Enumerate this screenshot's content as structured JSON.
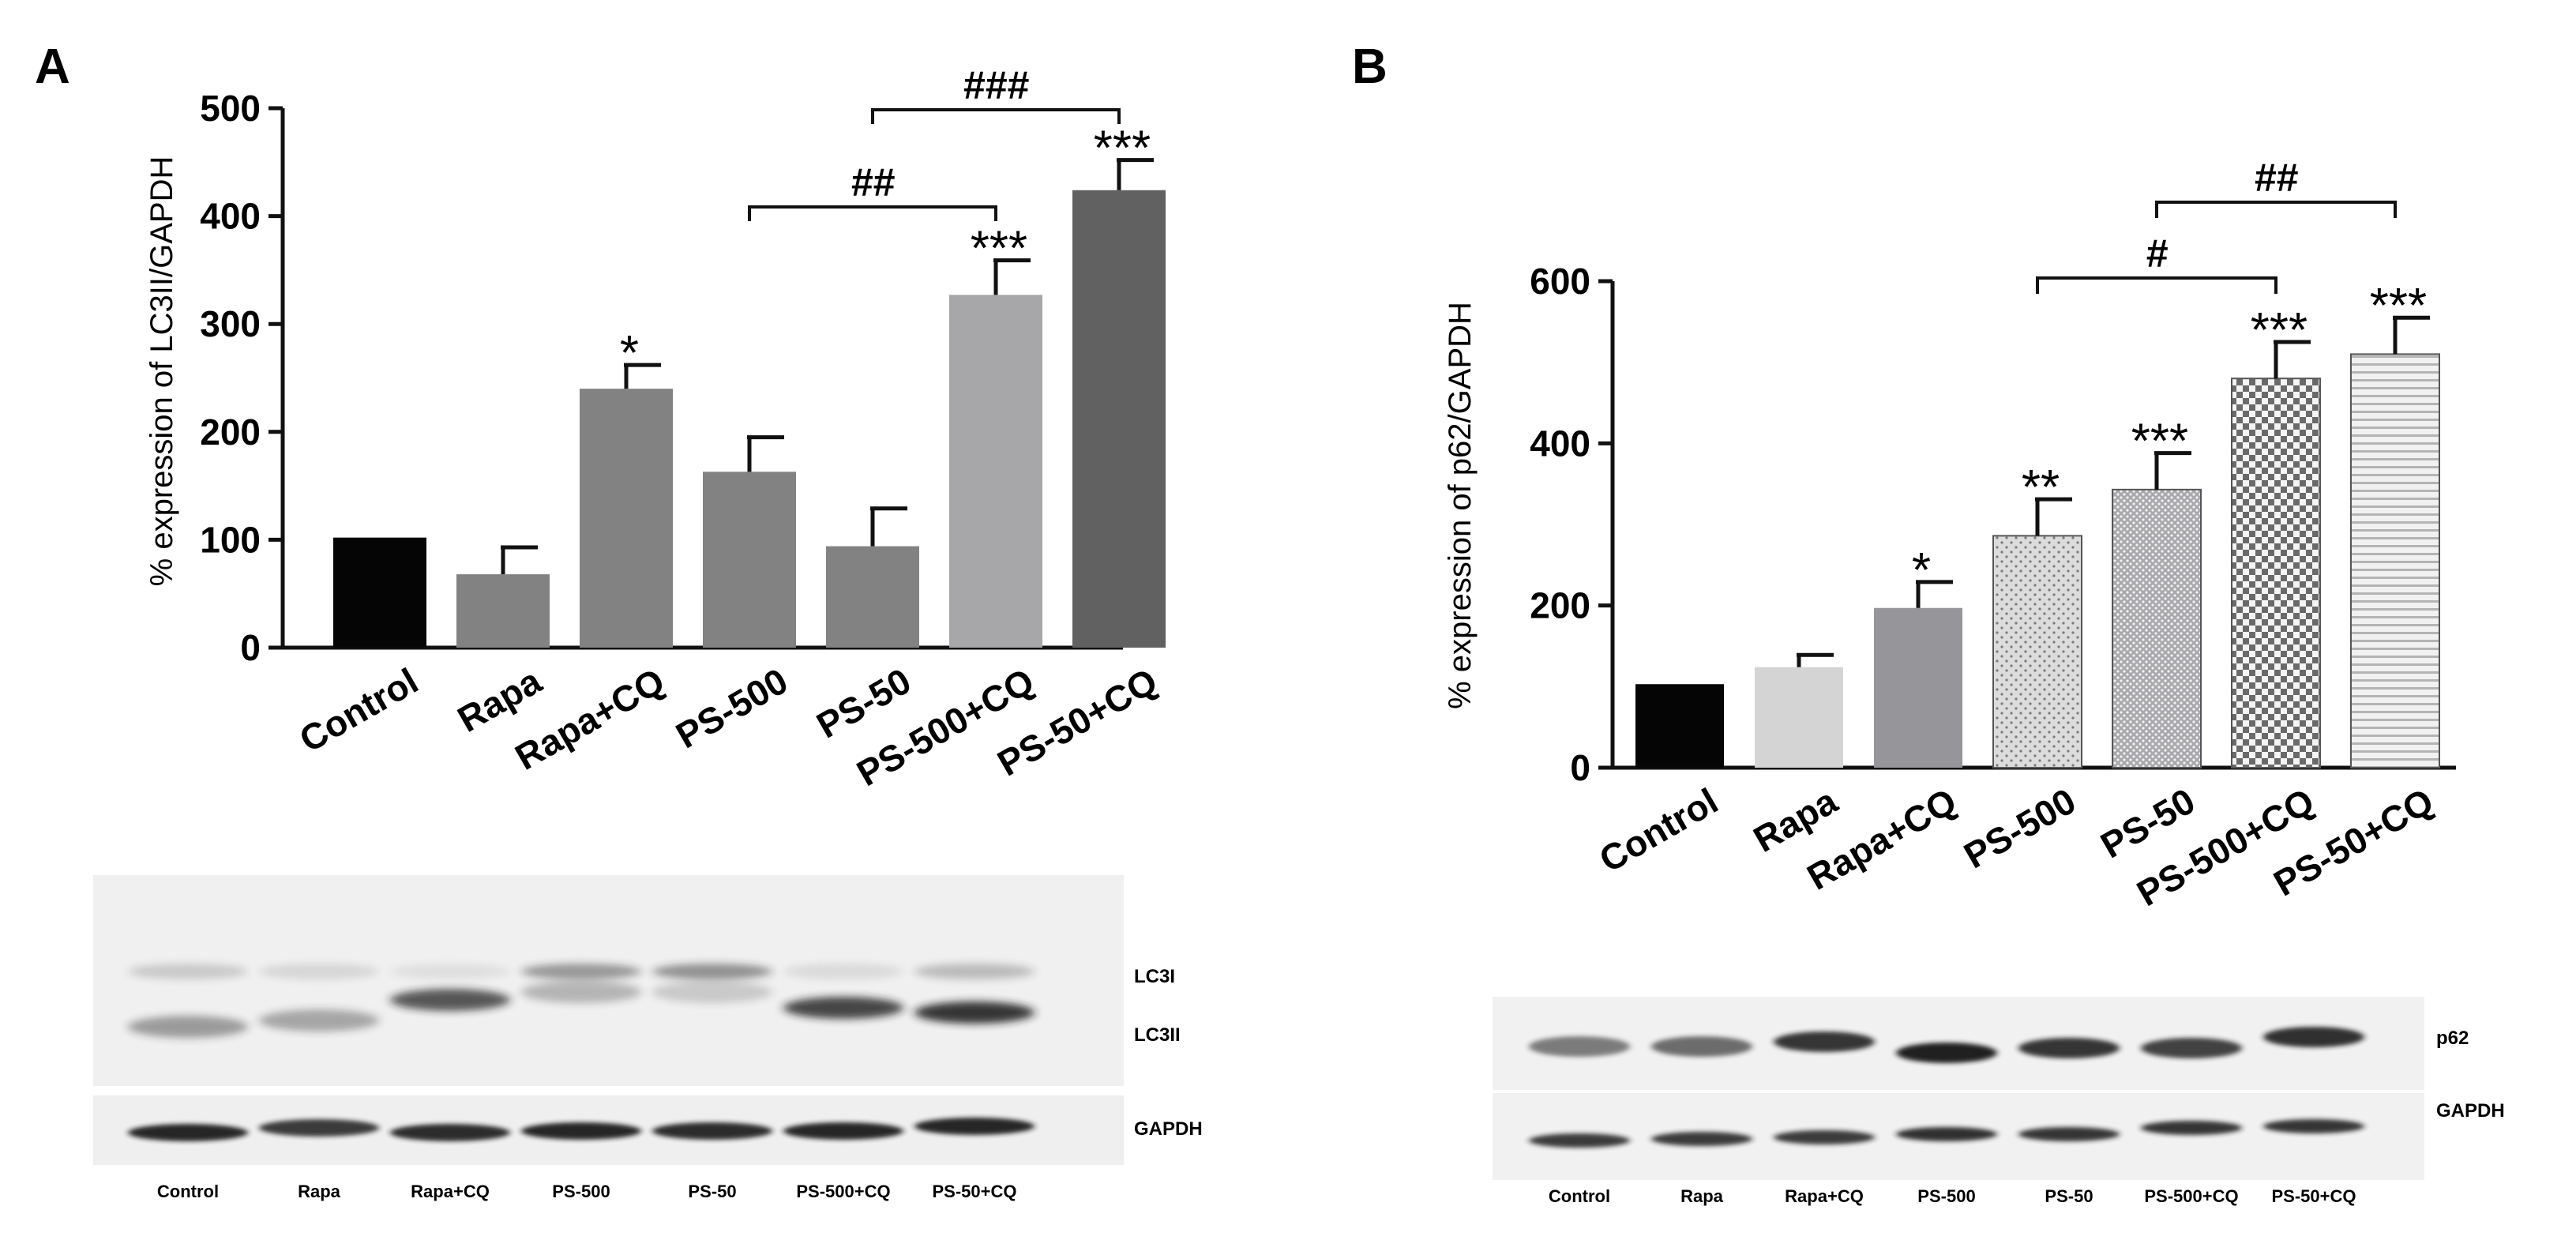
{
  "panels": [
    {
      "letter": "A",
      "chart_data": {
        "type": "bar",
        "ylabel": "% expression of LC3II/GAPDH",
        "ylim": [
          0,
          500
        ],
        "yticks": [
          0,
          100,
          200,
          300,
          400,
          500
        ],
        "categories": [
          "Control",
          "Rapa",
          "Rapa+CQ",
          "PS-500",
          "PS-50",
          "PS-500+CQ",
          "PS-50+CQ"
        ],
        "values": [
          102,
          68,
          240,
          163,
          94,
          327,
          424
        ],
        "errors": [
          0,
          25,
          22,
          32,
          35,
          32,
          28
        ],
        "fills": [
          "#050505",
          "#828282",
          "#828282",
          "#828282",
          "#828282",
          "#a7a7a9",
          "#616161"
        ],
        "patterns": [
          "solid",
          "solid",
          "solid",
          "solid",
          "solid",
          "solid",
          "solid"
        ],
        "stars": [
          "",
          "",
          "*",
          "",
          "",
          "***",
          "***"
        ],
        "brackets": [
          {
            "from": 3,
            "to": 5,
            "label": "##"
          },
          {
            "from": 4,
            "to": 6,
            "label": "###"
          }
        ]
      },
      "blot": {
        "lanes": [
          "Control",
          "Rapa",
          "Rapa+CQ",
          "PS-500",
          "PS-50",
          "PS-500+CQ",
          "PS-50+CQ"
        ],
        "bands": [
          "LC3I",
          "LC3II",
          "GAPDH"
        ]
      }
    },
    {
      "letter": "B",
      "chart_data": {
        "type": "bar",
        "ylabel": "% expression of p62/GAPDH",
        "ylim": [
          0,
          600
        ],
        "yticks": [
          0,
          200,
          400,
          600
        ],
        "categories": [
          "Control",
          "Rapa",
          "Rapa+CQ",
          "PS-500",
          "PS-50",
          "PS-500+CQ",
          "PS-50+CQ"
        ],
        "values": [
          103,
          124,
          197,
          286,
          343,
          480,
          510
        ],
        "errors": [
          0,
          15,
          32,
          45,
          45,
          45,
          45
        ],
        "fills": [
          "#050505",
          "#d4d4d4",
          "#96969a",
          "#dcdcdc",
          "#b9b9bb",
          "#bdbdbd",
          "#e6e6e6"
        ],
        "patterns": [
          "solid",
          "solid",
          "solid",
          "dots-light",
          "dots-dense",
          "checker",
          "stripes"
        ],
        "stars": [
          "",
          "",
          "*",
          "**",
          "***",
          "***",
          "***"
        ],
        "brackets": [
          {
            "from": 3,
            "to": 5,
            "label": "#"
          },
          {
            "from": 4,
            "to": 6,
            "label": "##"
          }
        ]
      },
      "blot": {
        "lanes": [
          "Control",
          "Rapa",
          "Rapa+CQ",
          "PS-500",
          "PS-50",
          "PS-500+CQ",
          "PS-50+CQ"
        ],
        "bands": [
          "p62",
          "GAPDH"
        ]
      }
    }
  ]
}
